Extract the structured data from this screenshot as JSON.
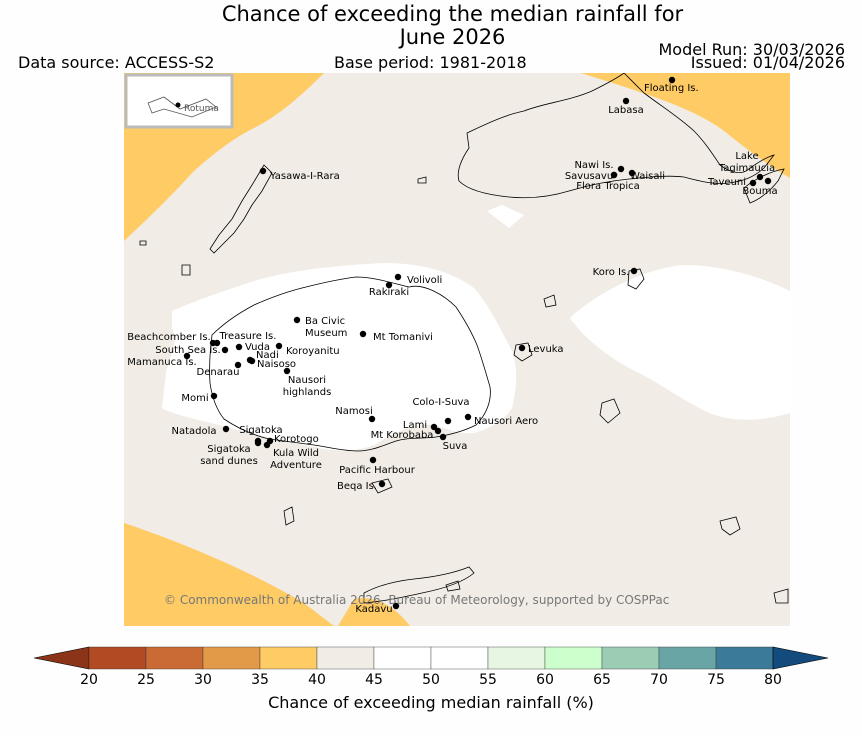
{
  "title": {
    "line1": "Chance of exceeding the median rainfall for",
    "line2": "June 2026"
  },
  "header": {
    "data_source": "Data source: ACCESS-S2",
    "base_period": "Base period: 1981-2018",
    "model_run": "Model Run: 30/03/2026",
    "issued": "Issued: 01/04/2026"
  },
  "inset": {
    "label": "Rotuma"
  },
  "copyright": "© Commonwealth of Australia 2026, Bureau of Meteorology, supported by COSPPac",
  "colors": {
    "below_35": "#ffcb65",
    "band_40_45": "#f1ede6",
    "band_45_55": "#ffffff",
    "land_outline": "#000000"
  },
  "places": [
    {
      "id": "floating-is",
      "name": "Floating Is."
    },
    {
      "id": "labasa",
      "name": "Labasa"
    },
    {
      "id": "yasawa-i-rara",
      "name": "Yasawa-I-Rara"
    },
    {
      "id": "nawi-is",
      "name": "Nawi Is."
    },
    {
      "id": "savusavu",
      "name": "Savusavu"
    },
    {
      "id": "waisali",
      "name": "Waisali"
    },
    {
      "id": "flora-tropica",
      "name": "Flora Tropica"
    },
    {
      "id": "lake-tagimaucia",
      "name": "Lake Tagimaucia"
    },
    {
      "id": "taveuni",
      "name": "Taveuni"
    },
    {
      "id": "bouma",
      "name": "Bouma"
    },
    {
      "id": "koro-is",
      "name": "Koro Is."
    },
    {
      "id": "volivoli",
      "name": "Volivoli"
    },
    {
      "id": "rakiraki",
      "name": "Rakiraki"
    },
    {
      "id": "ba-civic-museum",
      "name": "Ba Civic Museum"
    },
    {
      "id": "mt-tomanivi",
      "name": "Mt Tomanivi"
    },
    {
      "id": "beachcomber-is",
      "name": "Beachcomber Is."
    },
    {
      "id": "treasure-is",
      "name": "Treasure Is."
    },
    {
      "id": "south-sea-is",
      "name": "South Sea Is."
    },
    {
      "id": "vuda",
      "name": "Vuda"
    },
    {
      "id": "koroyanitu",
      "name": "Koroyanitu"
    },
    {
      "id": "nadi",
      "name": "Nadi"
    },
    {
      "id": "mamanuca-is",
      "name": "Mamanuca Is."
    },
    {
      "id": "naisoso",
      "name": "Naisoso"
    },
    {
      "id": "denarau",
      "name": "Denarau"
    },
    {
      "id": "levuka",
      "name": "Levuka"
    },
    {
      "id": "nausori-highlands",
      "name": "Nausori highlands"
    },
    {
      "id": "momi",
      "name": "Momi"
    },
    {
      "id": "namosi",
      "name": "Namosi"
    },
    {
      "id": "colo-i-suva",
      "name": "Colo-I-Suva"
    },
    {
      "id": "nausori-aero",
      "name": "Nausori Aero"
    },
    {
      "id": "lami",
      "name": "Lami"
    },
    {
      "id": "mt-korobaba",
      "name": "Mt Korobaba"
    },
    {
      "id": "suva",
      "name": "Suva"
    },
    {
      "id": "natadola",
      "name": "Natadola"
    },
    {
      "id": "sigatoka",
      "name": "Sigatoka"
    },
    {
      "id": "korotogo",
      "name": "Korotogo"
    },
    {
      "id": "sigatoka-sand-dunes",
      "name": "Sigatoka sand dunes"
    },
    {
      "id": "kula-wild-adventure",
      "name": "Kula Wild Adventure"
    },
    {
      "id": "pacific-harbour",
      "name": "Pacific Harbour"
    },
    {
      "id": "beqa-is",
      "name": "Beqa Is."
    },
    {
      "id": "kadavu",
      "name": "Kadavu"
    }
  ],
  "colorbar": {
    "label": "Chance of exceeding median rainfall (%)",
    "ticks": [
      "20",
      "25",
      "30",
      "35",
      "40",
      "45",
      "50",
      "55",
      "60",
      "65",
      "70",
      "75",
      "80"
    ],
    "under_color": "#8b3418",
    "over_color": "#124b7c",
    "bands": [
      {
        "from": 20,
        "to": 25,
        "color": "#b24a24"
      },
      {
        "from": 25,
        "to": 30,
        "color": "#ca6a34"
      },
      {
        "from": 30,
        "to": 35,
        "color": "#e39a48"
      },
      {
        "from": 35,
        "to": 40,
        "color": "#ffcb65"
      },
      {
        "from": 40,
        "to": 45,
        "color": "#f1ede6"
      },
      {
        "from": 45,
        "to": 50,
        "color": "#ffffff"
      },
      {
        "from": 50,
        "to": 55,
        "color": "#ffffff"
      },
      {
        "from": 55,
        "to": 60,
        "color": "#e6f6e2"
      },
      {
        "from": 60,
        "to": 65,
        "color": "#ccffcc"
      },
      {
        "from": 65,
        "to": 70,
        "color": "#9bcdb4"
      },
      {
        "from": 70,
        "to": 75,
        "color": "#6aa5a6"
      },
      {
        "from": 75,
        "to": 80,
        "color": "#3b7a99"
      }
    ]
  }
}
